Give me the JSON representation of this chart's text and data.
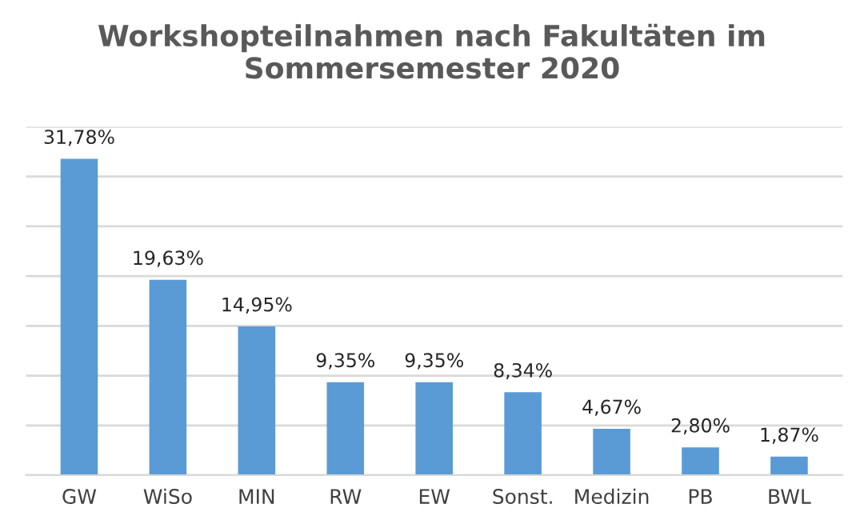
{
  "chart_data": {
    "type": "bar",
    "title": "Workshopteilnahmen nach Fakultäten im Sommersemester 2020",
    "categories": [
      "GW",
      "WiSo",
      "MIN",
      "RW",
      "EW",
      "Sonst.",
      "Medizin",
      "PB",
      "BWL"
    ],
    "values": [
      31.78,
      19.63,
      14.95,
      9.35,
      9.35,
      8.34,
      4.67,
      2.8,
      1.87
    ],
    "value_labels": [
      "31,78%",
      "19,63%",
      "14,95%",
      "9,35%",
      "9,35%",
      "8,34%",
      "4,67%",
      "2,80%",
      "1,87%"
    ],
    "color": "#5b9bd5",
    "ylim": [
      0,
      35
    ],
    "yticks": [
      {
        "value": 0,
        "label": null
      },
      {
        "value": 5,
        "label": null
      },
      {
        "value": 10,
        "label": null
      },
      {
        "value": 15,
        "label": null
      },
      {
        "value": 20,
        "label": null
      },
      {
        "value": 25,
        "label": null
      },
      {
        "value": 30,
        "label": null
      },
      {
        "value": 35,
        "label": null
      }
    ],
    "grid": "y",
    "tick_labels": "x"
  }
}
